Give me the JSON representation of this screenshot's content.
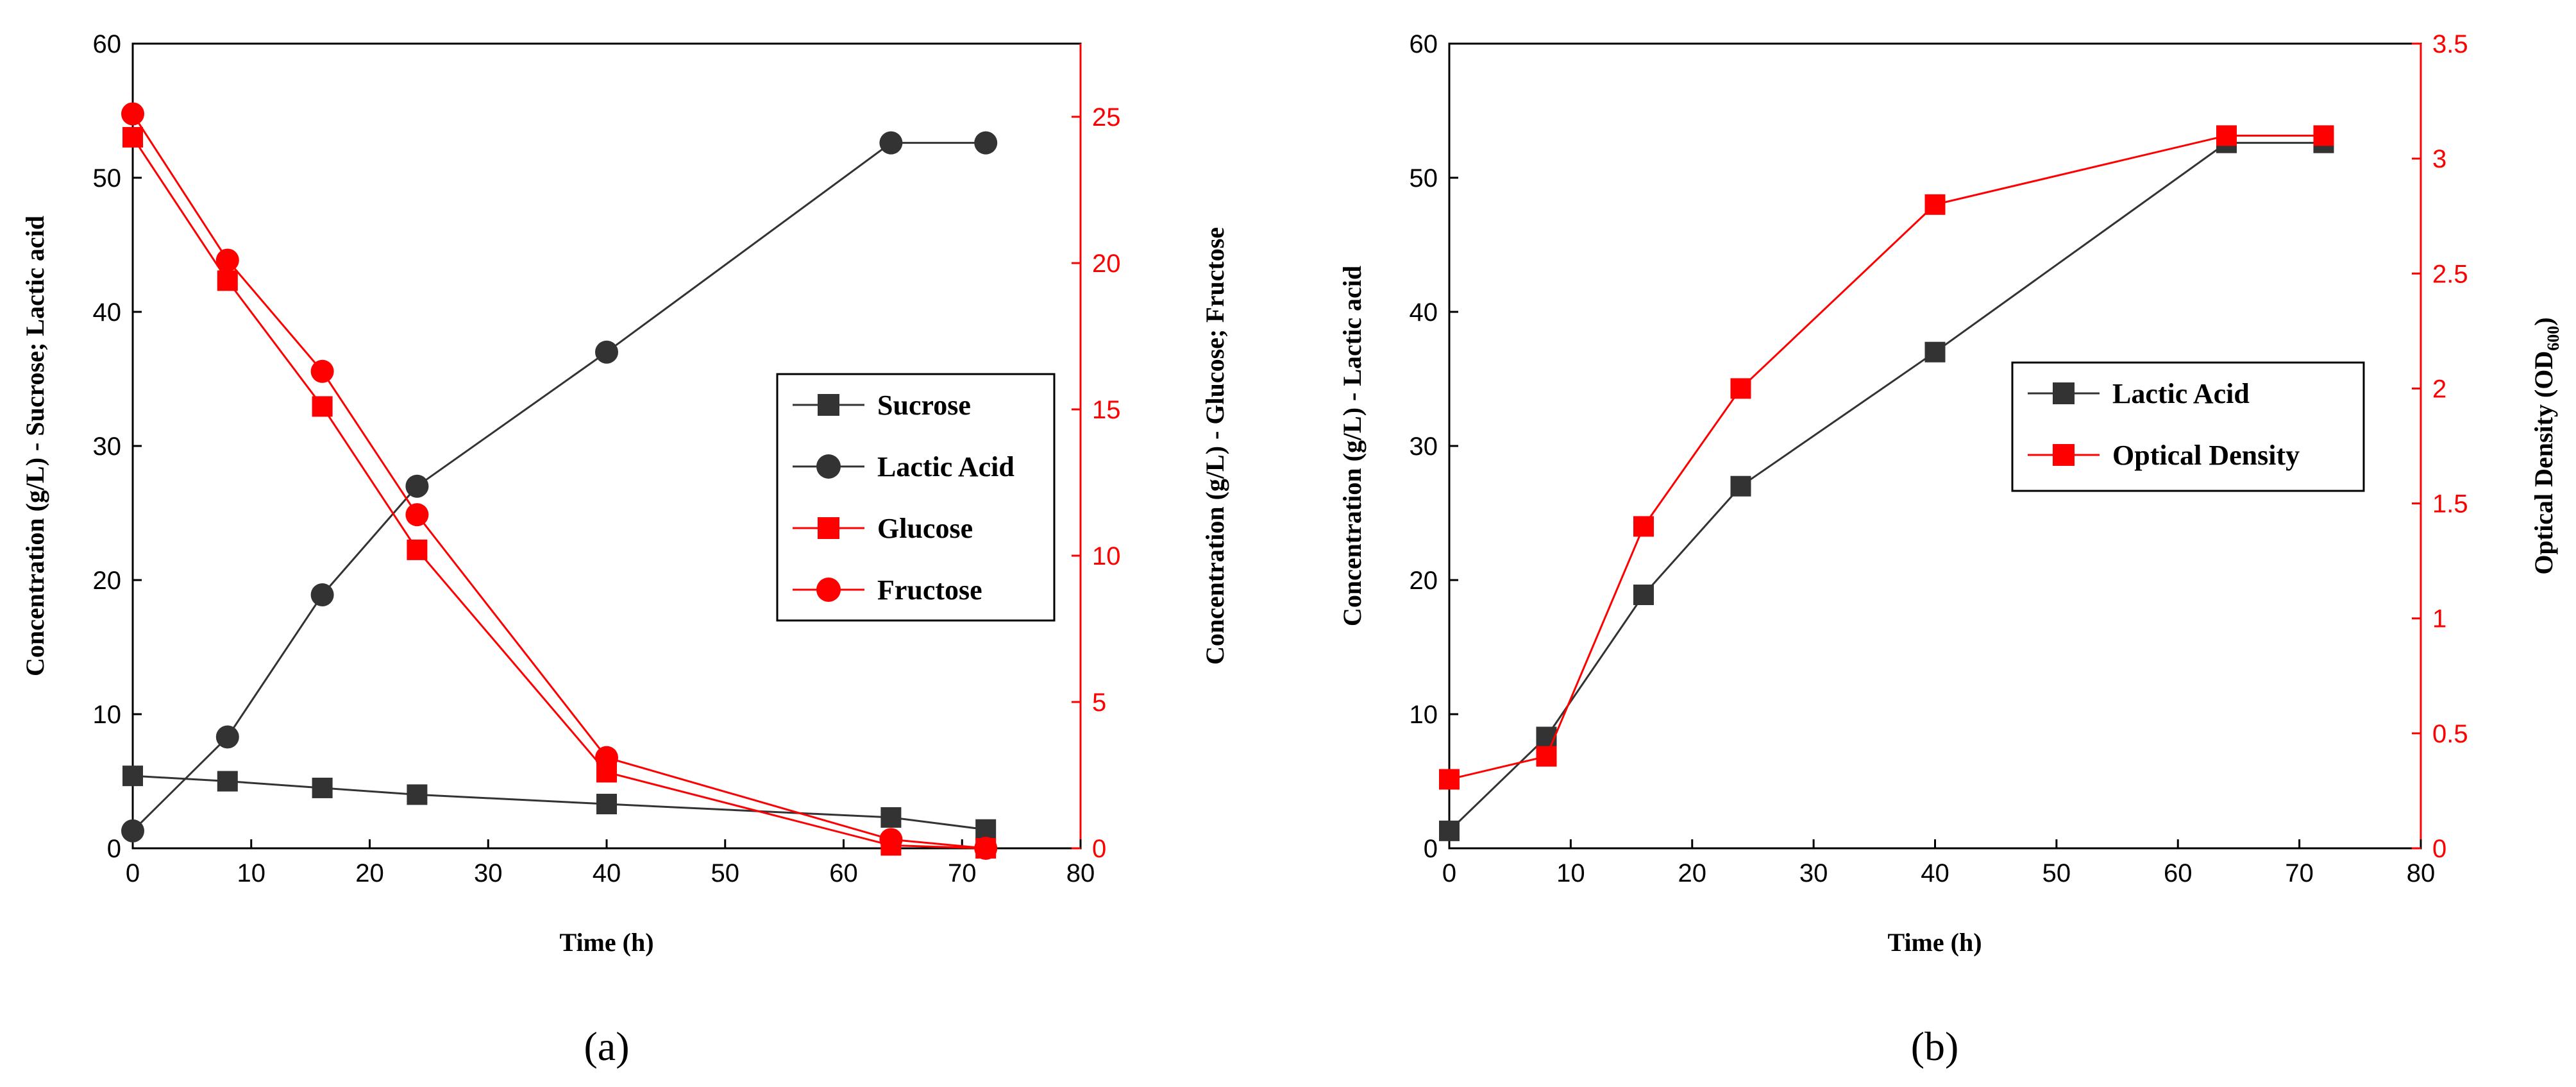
{
  "chart_data": [
    {
      "type": "line",
      "panel_label": "(a)",
      "xlabel": "Time (h)",
      "ylabel_left": "Concentration (g/L) - Sucrose; Lactic acid",
      "ylabel_right": "Concentration (g/L) - Glucose; Fructose",
      "xlim": [
        0,
        80
      ],
      "ylim_left": [
        0,
        60
      ],
      "ylim_right": [
        0,
        27.5
      ],
      "x_ticks": [
        0,
        10,
        20,
        30,
        40,
        50,
        60,
        70,
        80
      ],
      "y_ticks_left": [
        0,
        10,
        20,
        30,
        40,
        50,
        60
      ],
      "y_ticks_right": [
        0,
        5,
        10,
        15,
        20,
        25
      ],
      "legend_position": "center-right",
      "series": [
        {
          "name": "Sucrose",
          "axis": "left",
          "color": "#333333",
          "marker": "square",
          "x": [
            0,
            8,
            16,
            24,
            40,
            64,
            72
          ],
          "values": [
            5.4,
            5.0,
            4.5,
            4.0,
            3.3,
            2.3,
            1.4
          ]
        },
        {
          "name": "Lactic Acid",
          "axis": "left",
          "color": "#333333",
          "marker": "circle",
          "x": [
            0,
            8,
            16,
            24,
            40,
            64,
            72
          ],
          "values": [
            1.3,
            8.3,
            18.9,
            27.0,
            37.0,
            52.6,
            52.6
          ]
        },
        {
          "name": "Glucose",
          "axis": "right",
          "color": "#ff0000",
          "marker": "square",
          "x": [
            0,
            8,
            16,
            24,
            40,
            64,
            72
          ],
          "values": [
            24.3,
            19.4,
            15.1,
            10.2,
            2.6,
            0.1,
            0.0
          ]
        },
        {
          "name": "Fructose",
          "axis": "right",
          "color": "#ff0000",
          "marker": "circle",
          "x": [
            0,
            8,
            16,
            24,
            40,
            64,
            72
          ],
          "values": [
            25.1,
            20.1,
            16.3,
            11.4,
            3.1,
            0.3,
            0.0
          ]
        }
      ]
    },
    {
      "type": "line",
      "panel_label": "(b)",
      "xlabel": "Time (h)",
      "ylabel_left": "Concentration (g/L) - Lactic acid",
      "ylabel_right_main": "Optical Density (OD",
      "ylabel_right_sub": "600",
      "ylabel_right_end": ")",
      "xlim": [
        0,
        80
      ],
      "ylim_left": [
        0,
        60
      ],
      "ylim_right": [
        0,
        3.5
      ],
      "x_ticks": [
        0,
        10,
        20,
        30,
        40,
        50,
        60,
        70,
        80
      ],
      "y_ticks_left": [
        0,
        10,
        20,
        30,
        40,
        50,
        60
      ],
      "y_ticks_right": [
        0,
        0.5,
        1,
        1.5,
        2,
        2.5,
        3,
        3.5
      ],
      "legend_position": "center-right",
      "series": [
        {
          "name": "Lactic Acid",
          "axis": "left",
          "color": "#333333",
          "marker": "square",
          "x": [
            0,
            8,
            16,
            24,
            40,
            64,
            72
          ],
          "values": [
            1.3,
            8.3,
            18.9,
            27.0,
            37.0,
            52.6,
            52.6
          ]
        },
        {
          "name": "Optical Density",
          "axis": "right",
          "color": "#ff0000",
          "marker": "square",
          "x": [
            0,
            8,
            16,
            24,
            40,
            64,
            72
          ],
          "values": [
            0.3,
            0.4,
            1.4,
            2.0,
            2.8,
            3.1,
            3.1
          ]
        }
      ]
    }
  ]
}
